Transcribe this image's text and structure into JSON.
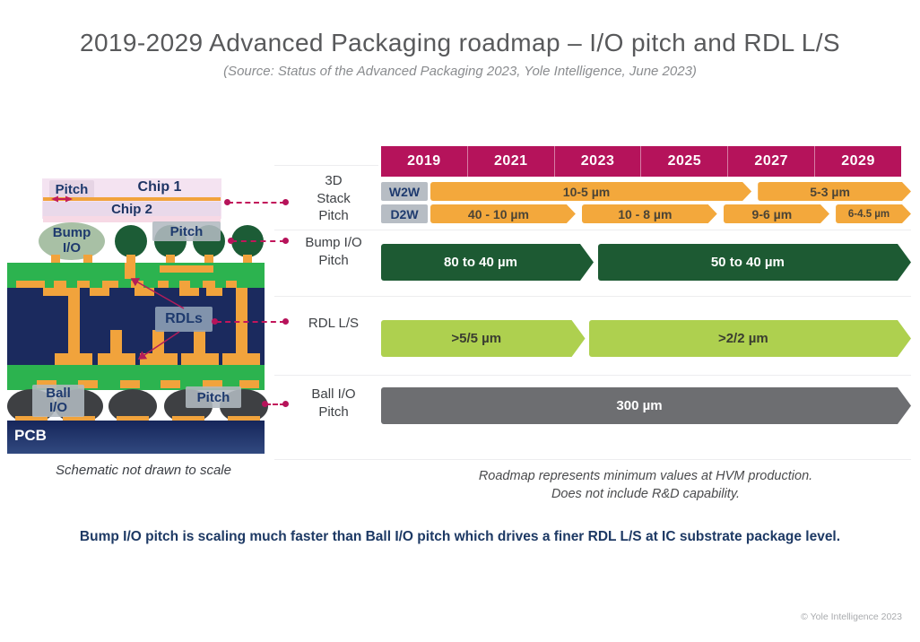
{
  "title": "2019-2029 Advanced Packaging roadmap – I/O pitch and RDL L/S",
  "subtitle": "(Source: Status of the Advanced Packaging 2023, Yole Intelligence, June 2023)",
  "headline": "Bump I/O pitch is scaling much faster than Ball I/O pitch which drives a finer RDL L/S at IC substrate package level.",
  "copyright": "© Yole Intelligence 2023",
  "colors": {
    "header_magenta": "#b5135b",
    "bar_orange": "#f3a83c",
    "bar_dark_green": "#1d5a33",
    "bar_light_green": "#aed04f",
    "bar_gray": "#6d6e71",
    "tag_gray": "#b7bdc4",
    "navy": "#1b2a5e",
    "pcb_green": "#2cb34f",
    "leader_crimson": "#c2155b"
  },
  "schematic": {
    "pitch_top_label": "Pitch",
    "chip1": "Chip 1",
    "chip2": "Chip 2",
    "bump_io": "Bump\nI/O",
    "pitch_bump": "Pitch",
    "rdls": "RDLs",
    "ball_io": "Ball\nI/O",
    "pitch_ball": "Pitch",
    "pcb": "PCB",
    "caption": "Schematic not drawn to scale"
  },
  "roadmap": {
    "years": [
      "2019",
      "2021",
      "2023",
      "2025",
      "2027",
      "2029"
    ],
    "labels": {
      "stack": "3D\nStack\nPitch",
      "bump": "Bump I/O\nPitch",
      "rdl": "RDL L/S",
      "ball": "Ball I/O\nPitch"
    },
    "rows": [
      {
        "id": "w2w",
        "tag": "W2W",
        "color": "orange",
        "segments": [
          {
            "text": "10-5 µm",
            "from": 0.093,
            "to": 0.699
          },
          {
            "text": "5-3 µm",
            "from": 0.711,
            "to": 1.0
          }
        ]
      },
      {
        "id": "d2w",
        "tag": "D2W",
        "color": "orange",
        "segments": [
          {
            "text": "40 - 10 µm",
            "from": 0.093,
            "to": 0.367
          },
          {
            "text": "10 - 8 µm",
            "from": 0.379,
            "to": 0.634
          },
          {
            "text": "9-6 µm",
            "from": 0.646,
            "to": 0.846
          },
          {
            "text": "6-4.5 µm",
            "from": 0.858,
            "to": 1.0,
            "small": true
          }
        ]
      },
      {
        "id": "bump",
        "color": "darkgreen",
        "segments": [
          {
            "text": "80 to 40 µm",
            "from": 0.0,
            "to": 0.401
          },
          {
            "text": "50 to 40 µm",
            "from": 0.409,
            "to": 1.0
          }
        ]
      },
      {
        "id": "rdl",
        "color": "lightgreen",
        "segments": [
          {
            "text": ">5/5 µm",
            "from": 0.0,
            "to": 0.385
          },
          {
            "text": ">2/2 µm",
            "from": 0.392,
            "to": 1.0
          }
        ]
      },
      {
        "id": "ball",
        "color": "graybar",
        "segments": [
          {
            "text": "300 µm",
            "from": 0.0,
            "to": 1.0
          }
        ]
      }
    ],
    "note": "Roadmap represents minimum values at HVM production.\nDoes not include R&D capability."
  },
  "chart_data": {
    "type": "table",
    "title": "2019-2029 Advanced Packaging roadmap – I/O pitch and RDL L/S",
    "x_axis_years": [
      2019,
      2021,
      2023,
      2025,
      2027,
      2029
    ],
    "rows": [
      {
        "category": "3D Stack Pitch – W2W",
        "segments": [
          {
            "value": "10-5 µm",
            "start_year": 2019,
            "end_year": 2026
          },
          {
            "value": "5-3 µm",
            "start_year": 2026,
            "end_year": 2029
          }
        ]
      },
      {
        "category": "3D Stack Pitch – D2W",
        "segments": [
          {
            "value": "40 - 10 µm",
            "start_year": 2019,
            "end_year": 2022.5
          },
          {
            "value": "10 - 8 µm",
            "start_year": 2022.5,
            "end_year": 2025.5
          },
          {
            "value": "9-6 µm",
            "start_year": 2025.5,
            "end_year": 2028
          },
          {
            "value": "6-4.5 µm",
            "start_year": 2028,
            "end_year": 2029
          }
        ]
      },
      {
        "category": "Bump I/O Pitch",
        "segments": [
          {
            "value": "80 to 40 µm",
            "start_year": 2019,
            "end_year": 2023.5
          },
          {
            "value": "50 to 40 µm",
            "start_year": 2023.5,
            "end_year": 2029
          }
        ]
      },
      {
        "category": "RDL L/S",
        "segments": [
          {
            "value": ">5/5 µm",
            "start_year": 2019,
            "end_year": 2023.3
          },
          {
            "value": ">2/2 µm",
            "start_year": 2023.3,
            "end_year": 2029
          }
        ]
      },
      {
        "category": "Ball I/O Pitch",
        "segments": [
          {
            "value": "300 µm",
            "start_year": 2019,
            "end_year": 2029
          }
        ]
      }
    ]
  }
}
